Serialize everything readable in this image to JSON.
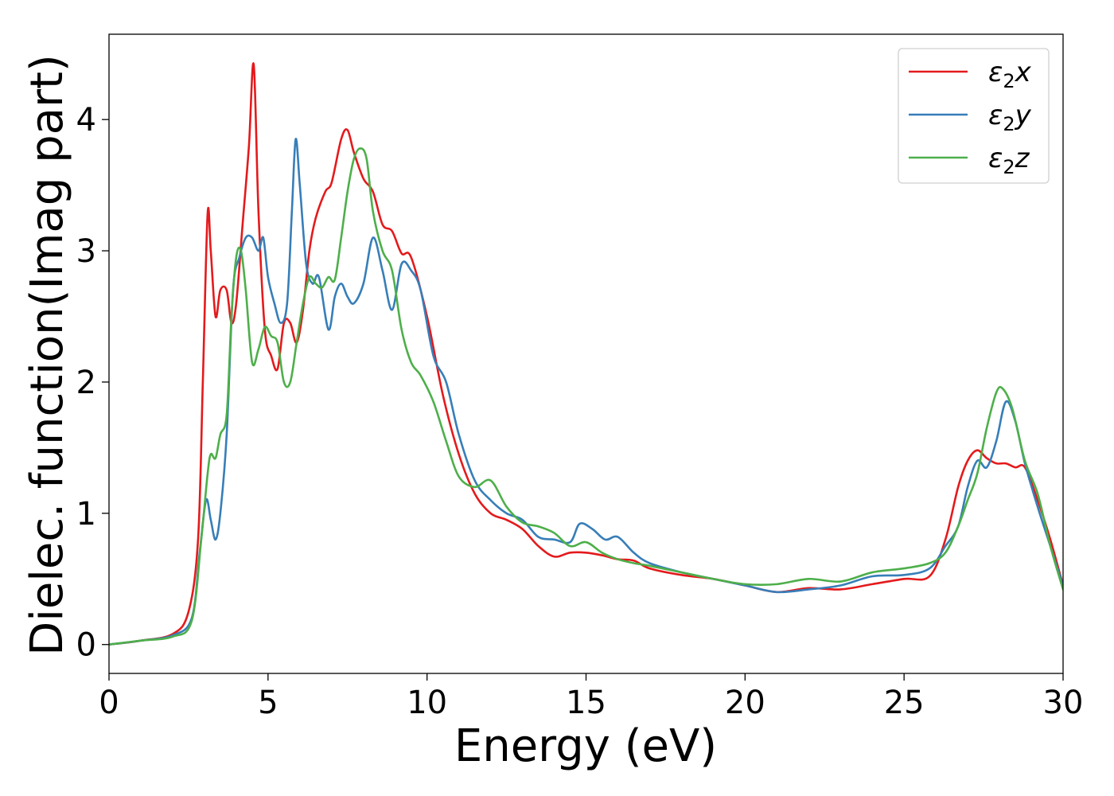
{
  "chart_data": {
    "type": "line",
    "xlabel": "Energy (eV)",
    "ylabel": "Dielec. function(Imag part)",
    "xlim": [
      0,
      30
    ],
    "ylim": [
      -0.22,
      4.65
    ],
    "xticks": [
      0,
      5,
      10,
      15,
      20,
      25,
      30
    ],
    "yticks": [
      0,
      1,
      2,
      3,
      4
    ],
    "xtick_labels": [
      "0",
      "5",
      "10",
      "15",
      "20",
      "25",
      "30"
    ],
    "ytick_labels": [
      "0",
      "1",
      "2",
      "3",
      "4"
    ],
    "grid": false,
    "legend_position": "top-right",
    "legend": [
      {
        "base": "ε",
        "sub": "2",
        "suffix": "x",
        "color": "#e41a1c"
      },
      {
        "base": "ε",
        "sub": "2",
        "suffix": "y",
        "color": "#377eb8"
      },
      {
        "base": "ε",
        "sub": "2",
        "suffix": "z",
        "color": "#4daf4a"
      }
    ],
    "series": [
      {
        "name": "ε2x",
        "color": "#e41a1c",
        "x": [
          0,
          1,
          2,
          2.5,
          2.8,
          2.95,
          3.1,
          3.2,
          3.35,
          3.5,
          3.7,
          3.85,
          4.0,
          4.2,
          4.4,
          4.55,
          4.7,
          4.9,
          5.1,
          5.3,
          5.5,
          5.7,
          5.9,
          6.1,
          6.3,
          6.5,
          6.8,
          7.0,
          7.3,
          7.5,
          7.7,
          8.0,
          8.3,
          8.6,
          8.9,
          9.2,
          9.5,
          10.0,
          10.5,
          11.0,
          11.5,
          12.0,
          12.5,
          13.0,
          13.5,
          14.0,
          14.5,
          15.0,
          15.5,
          16.0,
          16.5,
          17.0,
          18.0,
          19.0,
          20.0,
          21.0,
          22.0,
          23.0,
          24.0,
          25.0,
          25.8,
          26.3,
          26.7,
          27.0,
          27.3,
          27.6,
          27.9,
          28.2,
          28.5,
          28.8,
          29.2,
          29.6,
          30.0
        ],
        "y": [
          0,
          0.03,
          0.08,
          0.25,
          0.8,
          2.0,
          3.28,
          3.0,
          2.5,
          2.7,
          2.7,
          2.45,
          2.6,
          3.2,
          3.8,
          4.42,
          3.3,
          2.4,
          2.2,
          2.1,
          2.45,
          2.45,
          2.3,
          2.55,
          3.0,
          3.25,
          3.45,
          3.52,
          3.85,
          3.92,
          3.75,
          3.55,
          3.45,
          3.2,
          3.15,
          2.98,
          2.95,
          2.5,
          1.9,
          1.45,
          1.15,
          1.0,
          0.95,
          0.88,
          0.75,
          0.67,
          0.7,
          0.7,
          0.68,
          0.65,
          0.64,
          0.58,
          0.53,
          0.5,
          0.45,
          0.4,
          0.43,
          0.42,
          0.46,
          0.5,
          0.52,
          0.8,
          1.2,
          1.4,
          1.48,
          1.42,
          1.38,
          1.38,
          1.35,
          1.35,
          1.1,
          0.8,
          0.45
        ]
      },
      {
        "name": "ε2y",
        "color": "#377eb8",
        "x": [
          0,
          1,
          2,
          2.6,
          2.85,
          3.05,
          3.2,
          3.35,
          3.5,
          3.7,
          3.9,
          4.1,
          4.3,
          4.5,
          4.7,
          4.85,
          5.0,
          5.2,
          5.4,
          5.6,
          5.75,
          5.87,
          6.0,
          6.2,
          6.4,
          6.6,
          6.9,
          7.1,
          7.3,
          7.5,
          7.7,
          8.0,
          8.3,
          8.6,
          8.9,
          9.2,
          9.5,
          9.8,
          10.2,
          10.6,
          11.0,
          11.5,
          12.0,
          12.5,
          13.0,
          13.5,
          14.0,
          14.5,
          14.8,
          15.2,
          15.6,
          16.0,
          16.5,
          17.0,
          18.0,
          19.0,
          20.0,
          21.0,
          22.0,
          23.0,
          24.0,
          25.0,
          25.8,
          26.3,
          26.7,
          27.0,
          27.3,
          27.6,
          27.9,
          28.2,
          28.5,
          28.8,
          29.2,
          29.6,
          30.0
        ],
        "y": [
          0,
          0.03,
          0.07,
          0.2,
          0.7,
          1.1,
          0.95,
          0.8,
          1.0,
          1.6,
          2.7,
          2.95,
          3.1,
          3.1,
          3.0,
          3.1,
          2.8,
          2.6,
          2.45,
          2.6,
          3.3,
          3.85,
          3.5,
          2.9,
          2.75,
          2.8,
          2.4,
          2.65,
          2.75,
          2.65,
          2.6,
          2.75,
          3.1,
          2.85,
          2.55,
          2.9,
          2.85,
          2.7,
          2.2,
          2.0,
          1.6,
          1.25,
          1.1,
          1.0,
          0.95,
          0.82,
          0.8,
          0.78,
          0.92,
          0.88,
          0.8,
          0.82,
          0.7,
          0.62,
          0.55,
          0.5,
          0.45,
          0.4,
          0.42,
          0.45,
          0.52,
          0.53,
          0.58,
          0.75,
          0.9,
          1.2,
          1.4,
          1.35,
          1.55,
          1.85,
          1.7,
          1.38,
          1.05,
          0.75,
          0.45
        ]
      },
      {
        "name": "ε2z",
        "color": "#4daf4a",
        "x": [
          0,
          1,
          2,
          2.6,
          2.9,
          3.1,
          3.2,
          3.35,
          3.5,
          3.7,
          3.85,
          4.0,
          4.15,
          4.3,
          4.5,
          4.7,
          4.9,
          5.1,
          5.3,
          5.5,
          5.7,
          5.9,
          6.1,
          6.3,
          6.5,
          6.7,
          6.9,
          7.1,
          7.3,
          7.5,
          7.7,
          7.9,
          8.1,
          8.3,
          8.6,
          8.9,
          9.2,
          9.5,
          9.8,
          10.2,
          10.6,
          11.0,
          11.5,
          12.0,
          12.5,
          13.0,
          13.5,
          14.0,
          14.5,
          15.0,
          15.5,
          16.0,
          16.5,
          17.0,
          18.0,
          19.0,
          20.0,
          21.0,
          22.0,
          23.0,
          24.0,
          25.0,
          25.8,
          26.3,
          26.7,
          27.0,
          27.3,
          27.6,
          27.9,
          28.1,
          28.4,
          28.8,
          29.2,
          29.6,
          30.0
        ],
        "y": [
          0,
          0.03,
          0.06,
          0.18,
          0.8,
          1.3,
          1.45,
          1.42,
          1.6,
          1.75,
          2.5,
          2.95,
          3.0,
          2.7,
          2.15,
          2.25,
          2.42,
          2.35,
          2.3,
          2.0,
          2.0,
          2.3,
          2.6,
          2.8,
          2.75,
          2.72,
          2.8,
          2.78,
          3.1,
          3.45,
          3.7,
          3.78,
          3.7,
          3.3,
          3.0,
          2.85,
          2.4,
          2.15,
          2.05,
          1.85,
          1.55,
          1.28,
          1.2,
          1.25,
          1.05,
          0.93,
          0.9,
          0.85,
          0.75,
          0.78,
          0.7,
          0.65,
          0.62,
          0.6,
          0.55,
          0.5,
          0.46,
          0.46,
          0.5,
          0.48,
          0.55,
          0.58,
          0.62,
          0.7,
          0.9,
          1.1,
          1.3,
          1.65,
          1.92,
          1.95,
          1.8,
          1.4,
          1.15,
          0.75,
          0.42
        ]
      }
    ]
  }
}
